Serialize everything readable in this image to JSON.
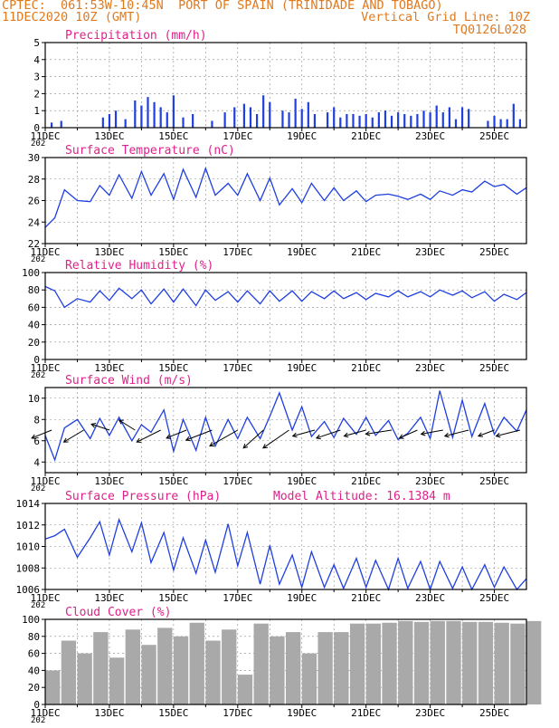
{
  "header": {
    "line1": "CPTEC:  061:53W-10:45N  PORT OF SPAIN (TRINIDADE AND TOBAGO)",
    "line2_left": "11DEC2020 10Z (GMT)",
    "line2_right": "Vertical Grid Line: 10Z",
    "line3_right": "TQ0126L028"
  },
  "colors": {
    "header": "#e07a1f",
    "title": "#e0208a",
    "series": "#1f3fe0",
    "cloud": "#a9a9a9",
    "grid": "#888888",
    "axis": "#000000"
  },
  "x_ticks": [
    "11DEC",
    "13DEC",
    "15DEC",
    "17DEC",
    "19DEC",
    "21DEC",
    "23DEC",
    "25DEC"
  ],
  "cut_year_label": "202",
  "chart_data": [
    {
      "id": "precip",
      "type": "bar",
      "title": "Precipitation (mm/h)",
      "ylim": [
        0,
        5
      ],
      "yticks": [
        0,
        1,
        2,
        3,
        4,
        5
      ],
      "x_days": [
        0.2,
        0.5,
        1.8,
        2.0,
        2.2,
        2.5,
        2.8,
        3.0,
        3.2,
        3.4,
        3.6,
        3.8,
        4.0,
        4.3,
        4.6,
        5.2,
        5.6,
        5.9,
        6.2,
        6.4,
        6.6,
        6.8,
        7.0,
        7.4,
        7.6,
        7.8,
        8.0,
        8.2,
        8.4,
        8.8,
        9.0,
        9.2,
        9.4,
        9.6,
        9.8,
        10.0,
        10.2,
        10.4,
        10.6,
        10.8,
        11.0,
        11.2,
        11.4,
        11.6,
        11.8,
        12.0,
        12.2,
        12.4,
        12.6,
        12.8,
        13.0,
        13.2,
        13.8,
        14.0,
        14.2,
        14.4,
        14.6,
        14.8
      ],
      "values": [
        0.3,
        0.4,
        0.6,
        0.8,
        1.0,
        0.5,
        1.6,
        1.3,
        1.8,
        1.5,
        1.2,
        0.9,
        1.9,
        0.6,
        0.8,
        0.4,
        0.9,
        1.2,
        1.4,
        1.2,
        0.8,
        1.9,
        1.5,
        1.0,
        0.9,
        1.7,
        1.1,
        1.5,
        0.8,
        0.9,
        1.2,
        0.6,
        0.8,
        0.8,
        0.7,
        0.8,
        0.6,
        0.9,
        1.0,
        0.7,
        0.9,
        0.8,
        0.7,
        0.8,
        1.0,
        0.9,
        1.3,
        0.9,
        1.2,
        0.5,
        1.2,
        1.1,
        0.4,
        0.7,
        0.5,
        0.5,
        1.4,
        0.5
      ]
    },
    {
      "id": "temp",
      "type": "line",
      "title": "Surface Temperature (nC)",
      "ylim": [
        22,
        30
      ],
      "yticks": [
        22,
        24,
        26,
        28,
        30
      ],
      "x_days": [
        0,
        0.3,
        0.6,
        1.0,
        1.4,
        1.7,
        2.0,
        2.3,
        2.7,
        3.0,
        3.3,
        3.7,
        4.0,
        4.3,
        4.7,
        5.0,
        5.3,
        5.7,
        6.0,
        6.3,
        6.7,
        7.0,
        7.3,
        7.7,
        8.0,
        8.3,
        8.7,
        9.0,
        9.3,
        9.7,
        10.0,
        10.3,
        10.7,
        11.0,
        11.3,
        11.7,
        12.0,
        12.3,
        12.7,
        13.0,
        13.3,
        13.7,
        14.0,
        14.3,
        14.7,
        15.0
      ],
      "values": [
        23.5,
        24.4,
        27.0,
        26.0,
        25.9,
        27.4,
        26.5,
        28.4,
        26.2,
        28.7,
        26.5,
        28.5,
        26.1,
        28.9,
        26.3,
        29.0,
        26.5,
        27.6,
        26.5,
        28.5,
        26.0,
        28.1,
        25.6,
        27.1,
        25.8,
        27.6,
        26.0,
        27.2,
        26.0,
        26.9,
        25.9,
        26.5,
        26.6,
        26.4,
        26.1,
        26.6,
        26.1,
        26.9,
        26.5,
        27.0,
        26.8,
        27.8,
        27.3,
        27.5,
        26.6,
        27.2
      ]
    },
    {
      "id": "rh",
      "type": "line",
      "title": "Relative Humidity (%)",
      "ylim": [
        0,
        100
      ],
      "yticks": [
        0,
        20,
        40,
        60,
        80,
        100
      ],
      "x_days": [
        0,
        0.3,
        0.6,
        1.0,
        1.4,
        1.7,
        2.0,
        2.3,
        2.7,
        3.0,
        3.3,
        3.7,
        4.0,
        4.3,
        4.7,
        5.0,
        5.3,
        5.7,
        6.0,
        6.3,
        6.7,
        7.0,
        7.3,
        7.7,
        8.0,
        8.3,
        8.7,
        9.0,
        9.3,
        9.7,
        10.0,
        10.3,
        10.7,
        11.0,
        11.3,
        11.7,
        12.0,
        12.3,
        12.7,
        13.0,
        13.3,
        13.7,
        14.0,
        14.3,
        14.7,
        15.0
      ],
      "values": [
        84,
        79,
        60,
        70,
        66,
        79,
        68,
        82,
        70,
        80,
        64,
        81,
        66,
        81,
        62,
        80,
        68,
        78,
        66,
        79,
        64,
        79,
        67,
        79,
        67,
        78,
        70,
        79,
        70,
        77,
        69,
        76,
        72,
        79,
        72,
        78,
        72,
        80,
        74,
        79,
        71,
        78,
        67,
        75,
        69,
        77
      ]
    },
    {
      "id": "wind",
      "type": "line",
      "title": "Surface Wind (m/s)",
      "ylim": [
        3,
        11
      ],
      "yticks": [
        4,
        6,
        8,
        10
      ],
      "x_days": [
        0,
        0.3,
        0.6,
        1.0,
        1.4,
        1.7,
        2.0,
        2.3,
        2.7,
        3.0,
        3.3,
        3.7,
        4.0,
        4.3,
        4.7,
        5.0,
        5.3,
        5.7,
        6.0,
        6.3,
        6.7,
        7.0,
        7.3,
        7.7,
        8.0,
        8.3,
        8.7,
        9.0,
        9.3,
        9.7,
        10.0,
        10.3,
        10.7,
        11.0,
        11.3,
        11.7,
        12.0,
        12.3,
        12.7,
        13.0,
        13.3,
        13.7,
        14.0,
        14.3,
        14.7,
        15.0
      ],
      "values": [
        6.5,
        4.2,
        7.2,
        8.0,
        6.2,
        8.1,
        6.5,
        8.2,
        6.0,
        7.5,
        6.8,
        8.9,
        5.0,
        8.0,
        5.1,
        8.2,
        5.5,
        8.0,
        6.2,
        8.2,
        6.2,
        8.3,
        10.5,
        7.0,
        9.2,
        6.4,
        7.8,
        6.3,
        8.1,
        6.6,
        8.2,
        6.5,
        7.9,
        6.1,
        6.7,
        8.2,
        6.2,
        10.7,
        6.3,
        9.8,
        6.4,
        9.5,
        6.6,
        8.2,
        6.9,
        8.9
      ],
      "vectors": {
        "x_days": [
          0.2,
          1.2,
          2.0,
          2.8,
          3.6,
          4.4,
          5.2,
          6.0,
          6.8,
          7.6,
          8.4,
          9.2,
          10.0,
          10.8,
          11.6,
          12.4,
          13.2,
          14.0,
          14.8
        ],
        "u": [
          -1.0,
          -1.0,
          -0.9,
          -0.8,
          -1.2,
          -1.0,
          -1.3,
          -1.4,
          -1.0,
          -1.3,
          -1.1,
          -1.2,
          -1.1,
          -1.3,
          -0.9,
          -1.1,
          -1.2,
          -0.8,
          -1.2
        ],
        "v": [
          -0.4,
          -0.6,
          0.3,
          0.5,
          -0.6,
          -0.4,
          -0.5,
          -0.8,
          -0.9,
          -0.9,
          -0.3,
          -0.4,
          -0.3,
          -0.2,
          -0.4,
          -0.2,
          -0.3,
          -0.3,
          -0.3
        ]
      }
    },
    {
      "id": "pressure",
      "type": "line",
      "title": "Surface Pressure (hPa)",
      "subtitle": "Model Altitude: 16.1384 m",
      "ylim": [
        1006,
        1014
      ],
      "yticks": [
        1006,
        1008,
        1010,
        1012,
        1014
      ],
      "x_days": [
        0,
        0.3,
        0.6,
        1.0,
        1.4,
        1.7,
        2.0,
        2.3,
        2.7,
        3.0,
        3.3,
        3.7,
        4.0,
        4.3,
        4.7,
        5.0,
        5.3,
        5.7,
        6.0,
        6.3,
        6.7,
        7.0,
        7.3,
        7.7,
        8.0,
        8.3,
        8.7,
        9.0,
        9.3,
        9.7,
        10.0,
        10.3,
        10.7,
        11.0,
        11.3,
        11.7,
        12.0,
        12.3,
        12.7,
        13.0,
        13.3,
        13.7,
        14.0,
        14.3,
        14.7,
        15.0
      ],
      "values": [
        1010.7,
        1011.0,
        1011.6,
        1009.0,
        1010.8,
        1012.3,
        1009.2,
        1012.5,
        1009.5,
        1012.2,
        1008.5,
        1011.3,
        1007.8,
        1010.8,
        1007.5,
        1010.6,
        1007.6,
        1012.1,
        1008.2,
        1011.3,
        1006.5,
        1010.1,
        1006.5,
        1009.2,
        1006.2,
        1009.5,
        1006.2,
        1008.3,
        1006.1,
        1008.9,
        1006.2,
        1008.7,
        1006.0,
        1008.9,
        1006.1,
        1008.6,
        1006.0,
        1008.6,
        1006.1,
        1008.1,
        1005.9,
        1008.3,
        1006.2,
        1008.1,
        1005.8,
        1007.0
      ]
    },
    {
      "id": "cloud",
      "type": "bar",
      "title": "Cloud Cover (%)",
      "ylim": [
        0,
        100
      ],
      "yticks": [
        0,
        20,
        40,
        60,
        80,
        100
      ],
      "x_days": [
        0,
        0.5,
        1.0,
        1.5,
        2.0,
        2.5,
        3.0,
        3.5,
        4.0,
        4.5,
        5.0,
        5.5,
        6.0,
        6.5,
        7.0,
        7.5,
        8.0,
        8.5,
        9.0,
        9.5,
        10.0,
        10.5,
        11.0,
        11.5,
        12.0,
        12.5,
        13.0,
        13.5,
        14.0,
        14.5,
        15.0
      ],
      "values": [
        40,
        75,
        60,
        85,
        55,
        88,
        70,
        90,
        80,
        96,
        75,
        88,
        35,
        95,
        80,
        85,
        60,
        85,
        85,
        95,
        95,
        96,
        98,
        97,
        98,
        98,
        97,
        97,
        96,
        95,
        98
      ]
    }
  ]
}
